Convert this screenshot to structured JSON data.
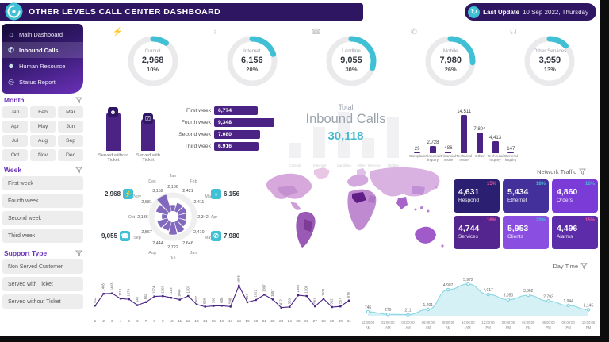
{
  "colors": {
    "purple": "#4b2385",
    "deep": "#2e1663",
    "teal": "#3fc0d4",
    "pink": "#f2569b",
    "tileColors": [
      "#2b1f72",
      "#43309b",
      "#7a3bd6",
      "#55258f",
      "#8a4fe0",
      "#5d2ca8"
    ]
  },
  "header": {
    "title": "OTHER LEVELS CALL CENTER DASHBOARD",
    "last_update_label": "Last Update",
    "last_update_value": "10 Sep 2022, Thursday"
  },
  "sidebar": {
    "nav": [
      {
        "label": "Main Dashboard",
        "icon": "home-icon",
        "active": false
      },
      {
        "label": "Inbound Calls",
        "icon": "phone-icon",
        "active": true
      },
      {
        "label": "Human Resource",
        "icon": "people-icon",
        "active": false
      },
      {
        "label": "Status Report",
        "icon": "report-icon",
        "active": false
      }
    ],
    "month_label": "Month",
    "months": [
      "Jan",
      "Feb",
      "Mar",
      "Apr",
      "May",
      "Jun",
      "Jul",
      "Aug",
      "Sep",
      "Oct",
      "Nov",
      "Dec"
    ],
    "week_label": "Week",
    "weeks": [
      "First week",
      "Fourth week",
      "Second week",
      "Third week"
    ],
    "support_label": "Support Type",
    "support_types": [
      "Non Served Customer",
      "Served with Ticket",
      "Served without Ticket"
    ]
  },
  "total": {
    "word": "Total",
    "title": "Inbound Calls",
    "value": "30,118",
    "ghost_categories": [
      "Curcuit",
      "Internet",
      "Landline",
      "Other Service",
      "Mobile"
    ]
  },
  "network_traffic": {
    "title": "Network Traffic",
    "tiles": [
      {
        "label": "Respond",
        "value": "4,631",
        "pct": "15%",
        "bg": "#2b1f72",
        "pctColor": "#f2569b"
      },
      {
        "label": "Ethernet",
        "value": "5,434",
        "pct": "18%",
        "bg": "#43309b",
        "pctColor": "#3fc0d4"
      },
      {
        "label": "Orders",
        "value": "4,860",
        "pct": "16%",
        "bg": "#7a3bd6",
        "pctColor": "#3fc0d4"
      },
      {
        "label": "Services",
        "value": "4,744",
        "pct": "16%",
        "bg": "#55258f",
        "pctColor": "#f2569b"
      },
      {
        "label": "Clients",
        "value": "5,953",
        "pct": "20%",
        "bg": "#8a4fe0",
        "pctColor": "#3fc0d4"
      },
      {
        "label": "Alarms",
        "value": "4,496",
        "pct": "15%",
        "bg": "#5d2ca8",
        "pctColor": "#f2569b"
      }
    ]
  },
  "radial_chips": [
    {
      "value": "2,968",
      "icon": "circuit-icon"
    },
    {
      "value": "6,156",
      "icon": "internet-icon"
    },
    {
      "value": "9,055",
      "icon": "landline-icon"
    },
    {
      "value": "7,980",
      "icon": "mobile-icon"
    }
  ],
  "day_time_title": "Day Time",
  "chart_data": [
    {
      "id": "service-gauges",
      "type": "pie",
      "title": "Inbound calls by service",
      "categories": [
        "Curcuit",
        "Internet",
        "Landline",
        "Mobile",
        "Other Services"
      ],
      "values": [
        2968,
        6156,
        9055,
        7980,
        3959
      ],
      "pcts": [
        10,
        20,
        30,
        26,
        13
      ],
      "labels": [
        "2,968",
        "6,156",
        "9,055",
        "7,980",
        "3,959"
      ],
      "pct_labels": [
        "10%",
        "20%",
        "30%",
        "26%",
        "13%"
      ],
      "icons": [
        "circuit-icon",
        "internet-icon",
        "landline-icon",
        "mobile-icon",
        "headset-icon"
      ]
    },
    {
      "id": "ticket-bars",
      "type": "bar",
      "categories": [
        "Served without Ticket",
        "Served with Ticket"
      ],
      "values": [
        16200,
        13918
      ]
    },
    {
      "id": "weekly-bars",
      "type": "bar",
      "orientation": "horizontal",
      "categories": [
        "First week",
        "Fourth week",
        "Second week",
        "Third week"
      ],
      "values": [
        6774,
        9348,
        7080,
        6916
      ],
      "labels": [
        "6,774",
        "9,348",
        "7,080",
        "6,916"
      ]
    },
    {
      "id": "complaints",
      "type": "bar",
      "categories": [
        "Complain",
        "Financial inquiry",
        "Financial Issue",
        "Technical Issue",
        "Other",
        "Technical inquiry",
        "General inquiry"
      ],
      "values": [
        29,
        2728,
        486,
        14511,
        7804,
        4413,
        147
      ],
      "labels": [
        "29",
        "2,728",
        "486",
        "14,511",
        "7,804",
        "4,413",
        "147"
      ]
    },
    {
      "id": "monthly-rose",
      "type": "pie",
      "subtype": "rose",
      "categories": [
        "Jan",
        "Feb",
        "Mar",
        "Apr",
        "May",
        "Jun",
        "Jul",
        "Aug",
        "Sep",
        "Oct",
        "Nov",
        "Dec"
      ],
      "values": [
        2186,
        2421,
        2411,
        2342,
        2410,
        2646,
        2722,
        2444,
        2567,
        2136,
        2681,
        3152
      ],
      "labels": [
        "2,186",
        "2,421",
        "2,411",
        "2,342",
        "2,410",
        "2,646",
        "2,722",
        "2,444",
        "2,567",
        "2,136",
        "2,681",
        "3,152"
      ]
    },
    {
      "id": "daily-calls",
      "type": "line",
      "xlabel": "Day of month",
      "ylim": [
        0,
        2200
      ],
      "x": [
        1,
        2,
        3,
        4,
        5,
        6,
        7,
        8,
        9,
        10,
        11,
        12,
        13,
        14,
        15,
        16,
        17,
        18,
        19,
        20,
        21,
        22,
        23,
        24,
        25,
        26,
        27,
        28,
        29,
        30,
        31
      ],
      "values": [
        612,
        1465,
        1493,
        1118,
        1073,
        649,
        863,
        1274,
        1303,
        1183,
        1046,
        1307,
        697,
        538,
        590,
        606,
        548,
        2045,
        857,
        1021,
        1397,
        1057,
        472,
        520,
        1358,
        1308,
        561,
        1109,
        512,
        557,
        979
      ]
    },
    {
      "id": "day-time",
      "type": "area",
      "title": "Day Time",
      "ylim": [
        0,
        6500
      ],
      "categories": [
        "12:00:00 AM",
        "02:00:00 AM",
        "04:00:00 AM",
        "06:00:00 AM",
        "08:00:00 AM",
        "10:00:00 AM",
        "12:00:00 PM",
        "02:00:00 PM",
        "04:00:00 PM",
        "06:00:00 PM",
        "08:00:00 PM",
        "10:00:00 PM"
      ],
      "values": [
        746,
        270,
        211,
        1201,
        4907,
        5972,
        4017,
        3050,
        3862,
        2793,
        1944,
        1145
      ],
      "labels": [
        "746",
        "270",
        "211",
        "1,201",
        "4,907",
        "5,972",
        "4,017",
        "3,050",
        "3,862",
        "2,793",
        "1,944",
        "1,145"
      ]
    }
  ]
}
